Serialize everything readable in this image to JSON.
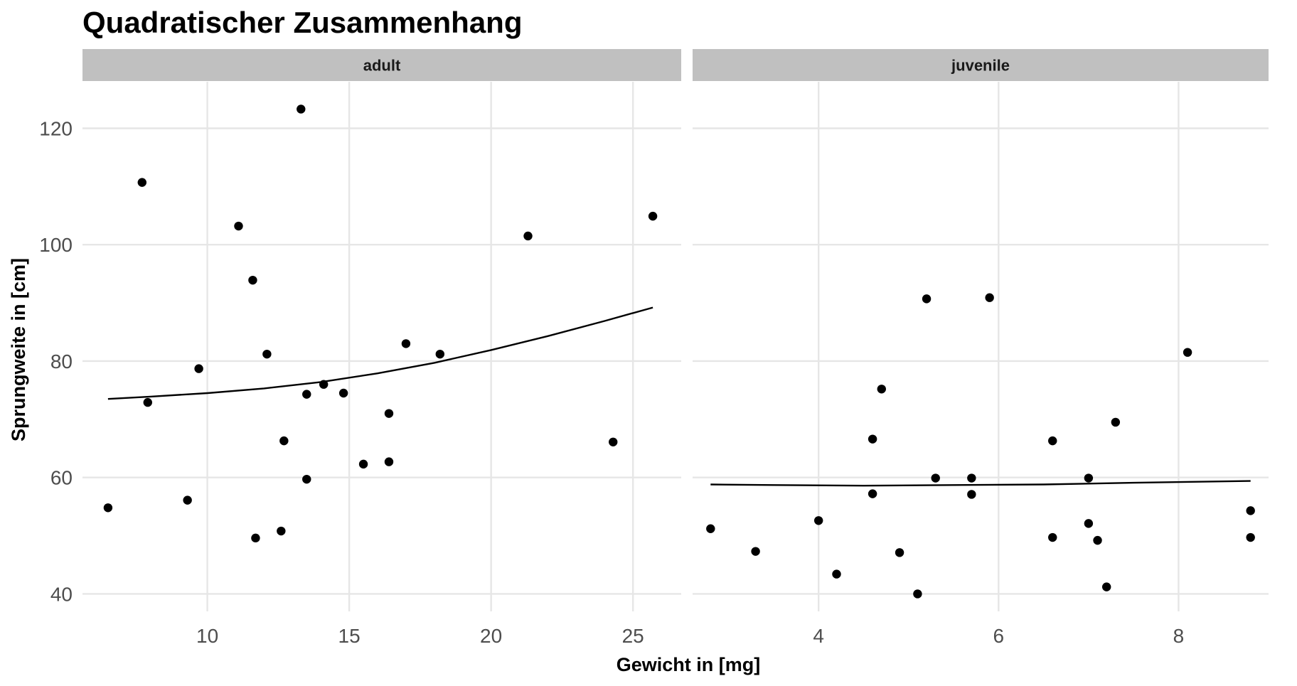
{
  "chart_data": {
    "type": "scatter",
    "title": "Quadratischer Zusammenhang",
    "xlabel": "Gewicht in [mg]",
    "ylabel": "Sprungweite in [cm]",
    "grid": true,
    "legend": "none",
    "colors": {
      "point": "#000000",
      "line": "#000000",
      "strip": "#c0c0c0",
      "grid": "#e6e6e6",
      "tick_text": "#4d4d4d"
    },
    "ylim": [
      37,
      128
    ],
    "yticks": [
      40,
      60,
      80,
      100,
      120
    ],
    "panels": [
      {
        "name": "adult",
        "xlim": [
          5.6,
          26.7
        ],
        "xticks": [
          10,
          15,
          20,
          25
        ],
        "points": [
          {
            "x": 6.5,
            "y": 54.8
          },
          {
            "x": 7.7,
            "y": 110.7
          },
          {
            "x": 7.9,
            "y": 72.9
          },
          {
            "x": 9.3,
            "y": 56.1
          },
          {
            "x": 9.7,
            "y": 78.7
          },
          {
            "x": 11.1,
            "y": 103.2
          },
          {
            "x": 11.6,
            "y": 93.9
          },
          {
            "x": 11.7,
            "y": 49.6
          },
          {
            "x": 12.1,
            "y": 81.2
          },
          {
            "x": 12.6,
            "y": 50.8
          },
          {
            "x": 12.7,
            "y": 66.3
          },
          {
            "x": 13.3,
            "y": 123.3
          },
          {
            "x": 13.5,
            "y": 59.7
          },
          {
            "x": 13.5,
            "y": 74.3
          },
          {
            "x": 14.1,
            "y": 76.0
          },
          {
            "x": 14.8,
            "y": 74.5
          },
          {
            "x": 15.5,
            "y": 62.3
          },
          {
            "x": 16.4,
            "y": 71.0
          },
          {
            "x": 16.4,
            "y": 62.7
          },
          {
            "x": 17.0,
            "y": 83.0
          },
          {
            "x": 18.2,
            "y": 81.2
          },
          {
            "x": 21.3,
            "y": 101.5
          },
          {
            "x": 24.3,
            "y": 66.1
          },
          {
            "x": 25.7,
            "y": 104.9
          }
        ],
        "fit": [
          {
            "x": 6.5,
            "y": 73.5
          },
          {
            "x": 8.0,
            "y": 73.9
          },
          {
            "x": 10.0,
            "y": 74.5
          },
          {
            "x": 12.0,
            "y": 75.3
          },
          {
            "x": 14.0,
            "y": 76.4
          },
          {
            "x": 16.0,
            "y": 77.9
          },
          {
            "x": 18.0,
            "y": 79.7
          },
          {
            "x": 20.0,
            "y": 81.9
          },
          {
            "x": 22.0,
            "y": 84.3
          },
          {
            "x": 24.0,
            "y": 86.9
          },
          {
            "x": 25.7,
            "y": 89.2
          }
        ]
      },
      {
        "name": "juvenile",
        "xlim": [
          2.6,
          9.0
        ],
        "xticks": [
          4,
          6,
          8
        ],
        "points": [
          {
            "x": 2.8,
            "y": 51.2
          },
          {
            "x": 3.3,
            "y": 47.3
          },
          {
            "x": 4.0,
            "y": 52.6
          },
          {
            "x": 4.2,
            "y": 43.4
          },
          {
            "x": 4.6,
            "y": 66.6
          },
          {
            "x": 4.6,
            "y": 57.2
          },
          {
            "x": 4.7,
            "y": 75.2
          },
          {
            "x": 4.9,
            "y": 47.1
          },
          {
            "x": 5.1,
            "y": 40.0
          },
          {
            "x": 5.2,
            "y": 90.7
          },
          {
            "x": 5.3,
            "y": 59.9
          },
          {
            "x": 5.7,
            "y": 59.9
          },
          {
            "x": 5.7,
            "y": 57.1
          },
          {
            "x": 5.9,
            "y": 90.9
          },
          {
            "x": 6.6,
            "y": 66.3
          },
          {
            "x": 6.6,
            "y": 49.7
          },
          {
            "x": 7.0,
            "y": 59.9
          },
          {
            "x": 7.0,
            "y": 52.1
          },
          {
            "x": 7.1,
            "y": 49.2
          },
          {
            "x": 7.2,
            "y": 41.2
          },
          {
            "x": 7.3,
            "y": 69.5
          },
          {
            "x": 8.1,
            "y": 81.5
          },
          {
            "x": 8.8,
            "y": 54.3
          },
          {
            "x": 8.8,
            "y": 49.7
          }
        ],
        "fit": [
          {
            "x": 2.8,
            "y": 58.8
          },
          {
            "x": 3.5,
            "y": 58.7
          },
          {
            "x": 4.5,
            "y": 58.6
          },
          {
            "x": 5.5,
            "y": 58.7
          },
          {
            "x": 6.5,
            "y": 58.8
          },
          {
            "x": 7.5,
            "y": 59.1
          },
          {
            "x": 8.8,
            "y": 59.4
          }
        ]
      }
    ]
  }
}
